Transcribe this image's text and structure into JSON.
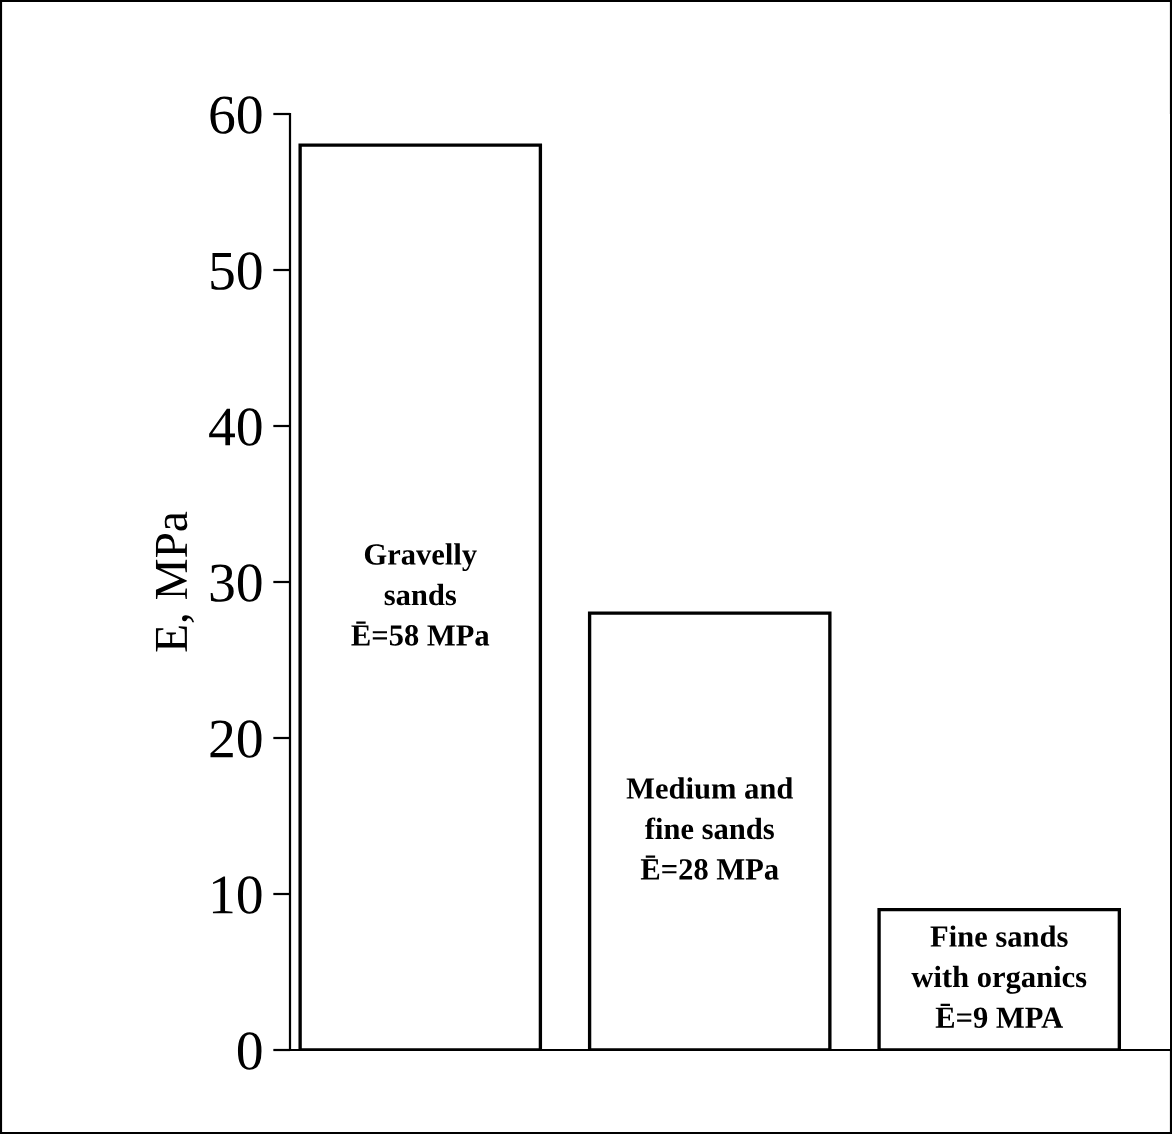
{
  "chart_data": {
    "type": "bar",
    "ylabel": "E, MPa",
    "categories": [
      null,
      null,
      null
    ],
    "values": [
      58,
      28,
      9
    ],
    "value_labels": [
      "Gravelly\nsands\nĒ=58 MPa",
      "Medium and\nfine sands\nĒ=28 MPa",
      "Fine sands\nwith organics\nĒ=9 MPA"
    ],
    "color": "#ffffff",
    "ylim": [
      0,
      60
    ],
    "yticks": [
      0,
      10,
      20,
      30,
      40,
      50,
      60
    ],
    "grid": false,
    "legend": false,
    "tick_labels": "y"
  }
}
